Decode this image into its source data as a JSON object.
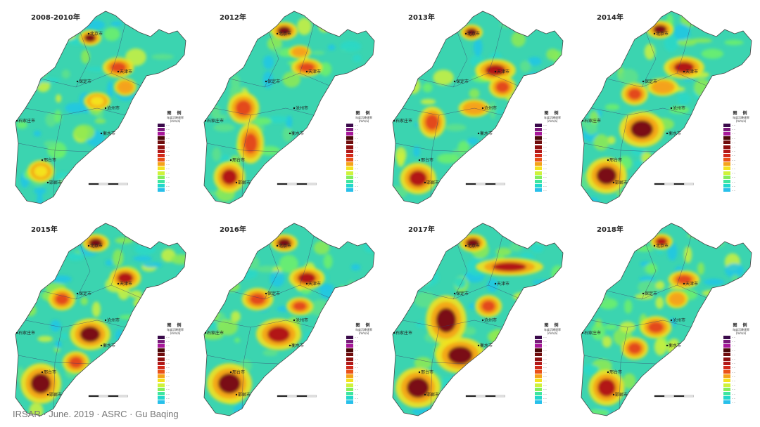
{
  "panels": [
    {
      "title": "2008-2010年"
    },
    {
      "title": "2012年"
    },
    {
      "title": "2013年"
    },
    {
      "title": "2014年"
    },
    {
      "title": "2015年"
    },
    {
      "title": "2016年"
    },
    {
      "title": "2017年"
    },
    {
      "title": "2018年"
    }
  ],
  "legend": {
    "title": "图 例",
    "subtitle": "年度沉降速率",
    "unit": "(mm/a)",
    "colors": [
      "#3a0a4a",
      "#7a1a7a",
      "#a8189a",
      "#4a0808",
      "#6e0c0c",
      "#8e1010",
      "#b21818",
      "#d22a1a",
      "#ea5218",
      "#f5a21a",
      "#f4e21e",
      "#cff23a",
      "#86ee5a",
      "#3ee6a0",
      "#22d8cc",
      "#28c0ea"
    ]
  },
  "cities": [
    "北京市",
    "天津市",
    "保定市",
    "沧州市",
    "石家庄市",
    "衡水市",
    "邢台市",
    "邯郸市"
  ],
  "footer": "IRSAR · June. 2019 · ASRC · Gu Baqing"
}
